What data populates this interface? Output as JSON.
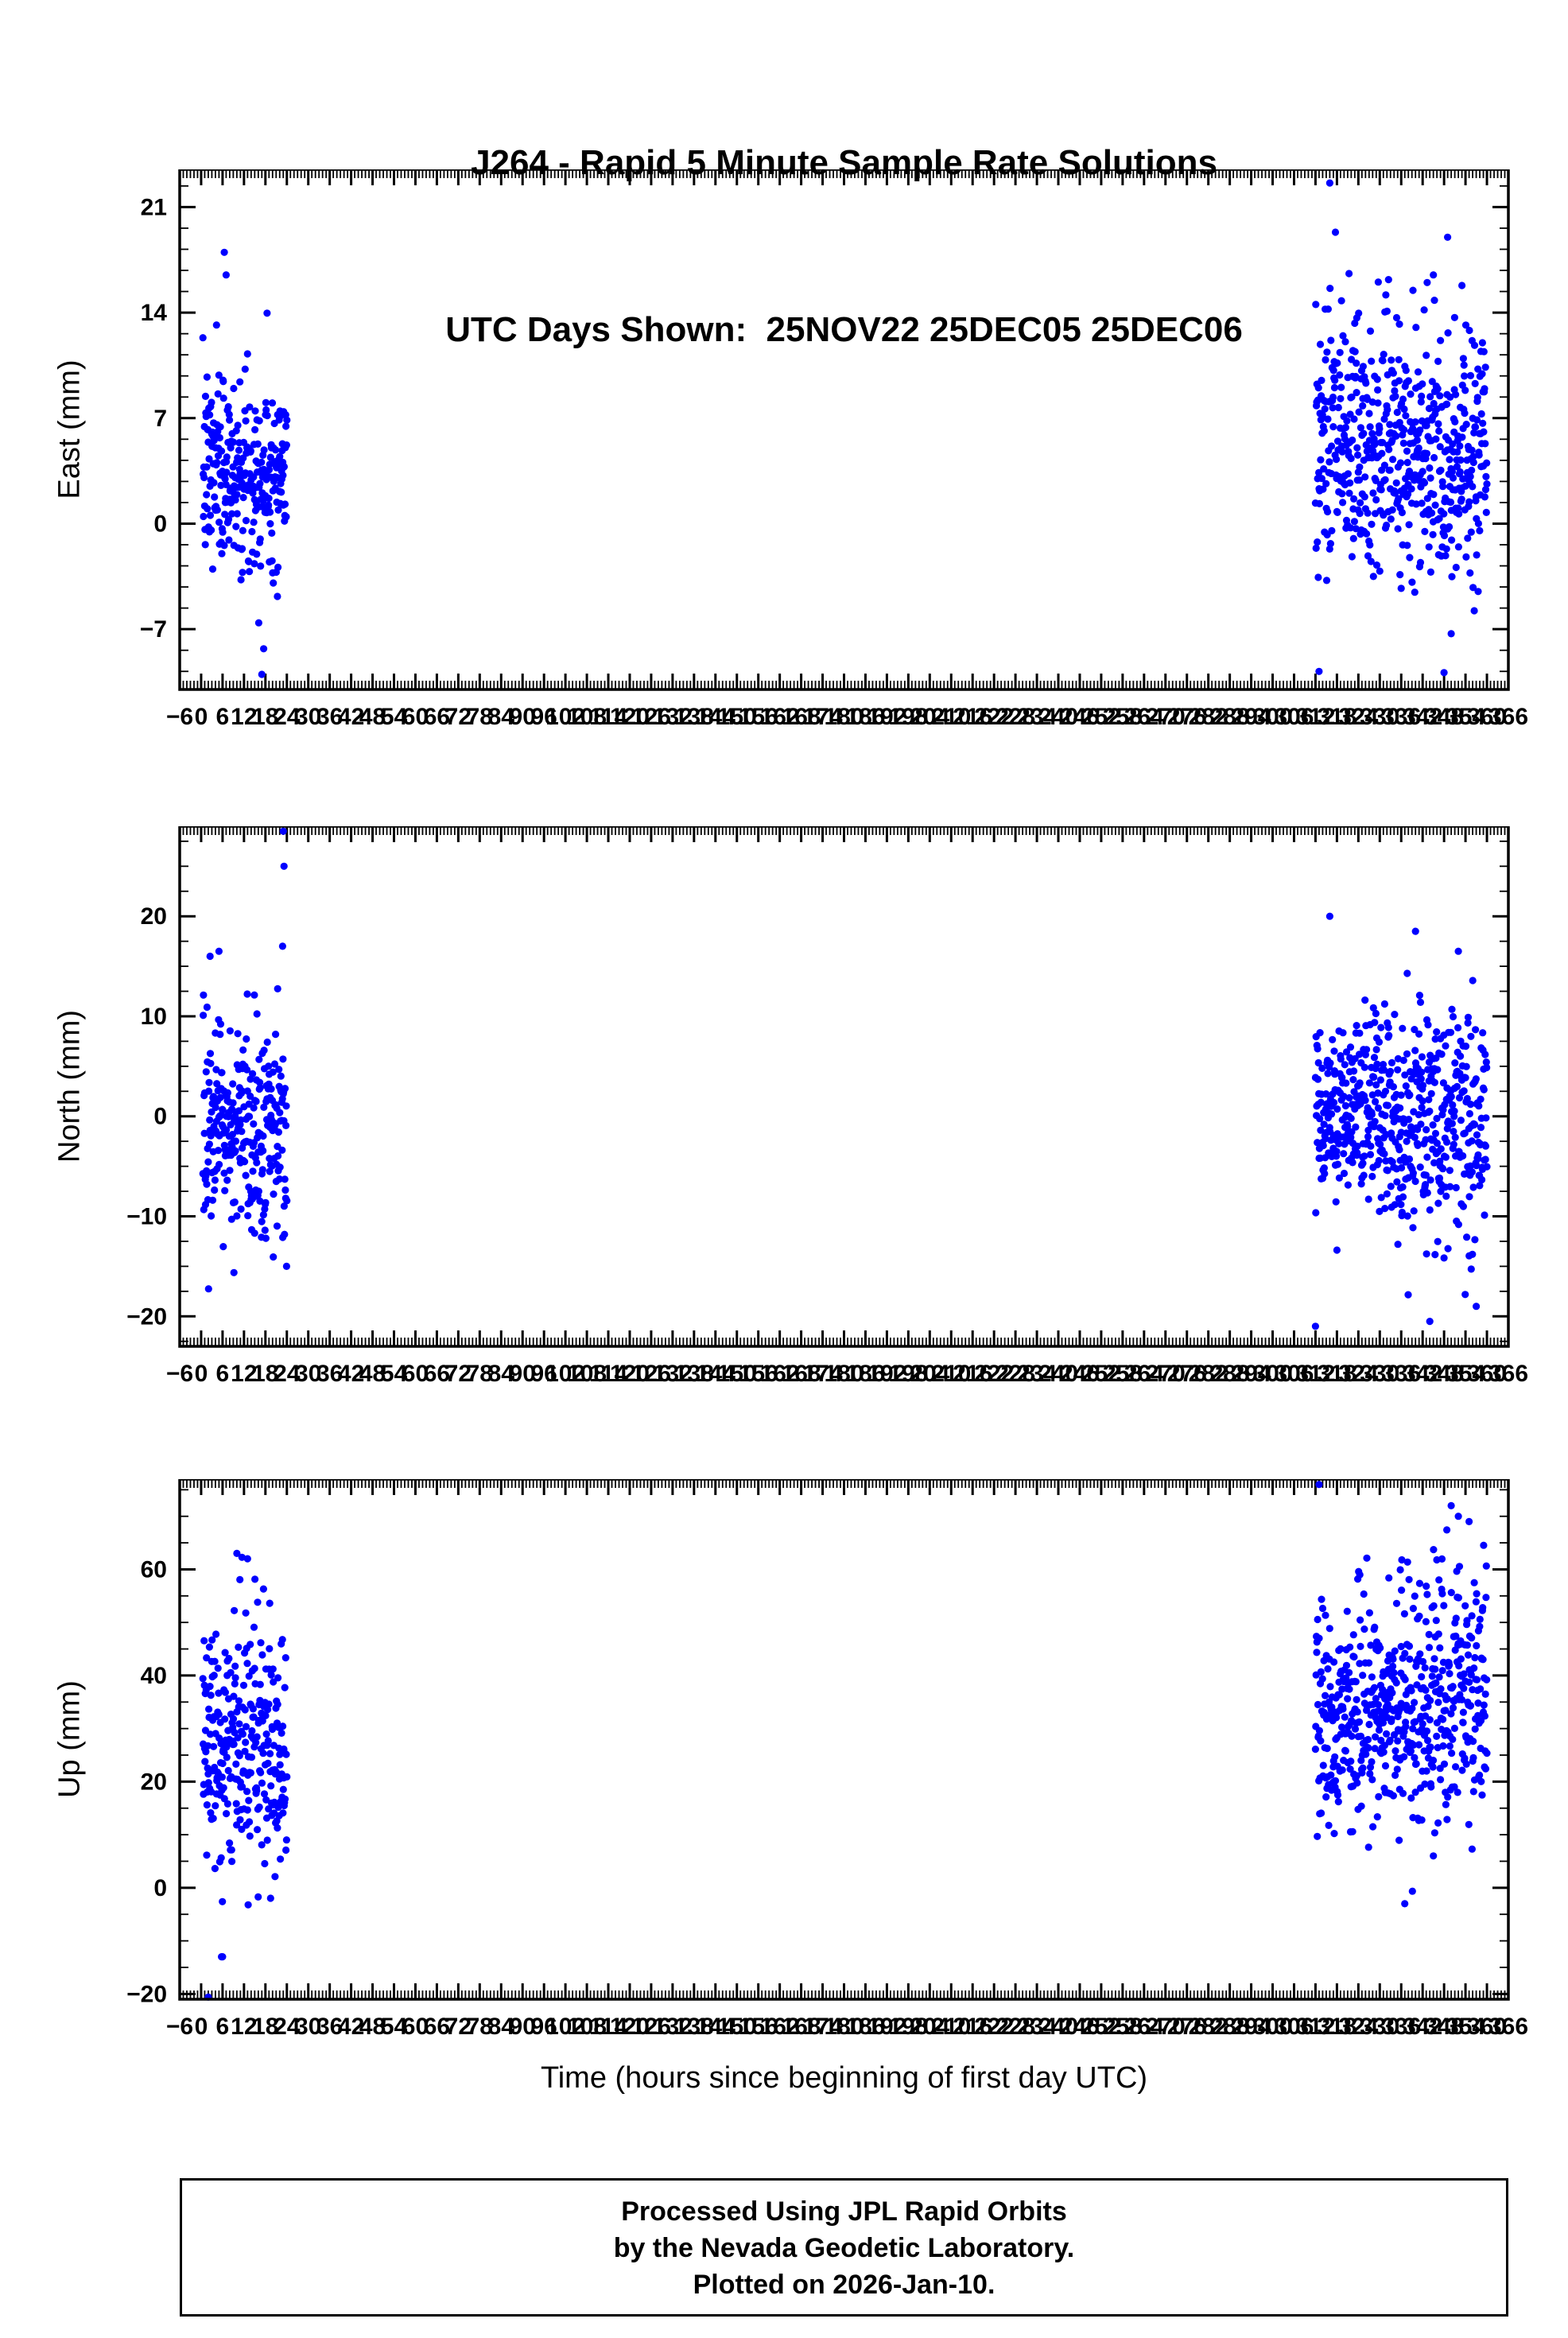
{
  "title": {
    "line1": "J264 - Rapid 5 Minute Sample Rate Solutions",
    "line2": "UTC Days Shown:  25NOV22 25DEC05 25DEC06"
  },
  "x": {
    "label": "Time (hours since beginning of first day UTC)",
    "lim": [
      -6,
      366
    ],
    "tick_major": 6,
    "tick_minor": 1
  },
  "colors": {
    "marker": "#0000ff",
    "frame": "#000000"
  },
  "footer": {
    "line1": "Processed Using JPL Rapid Orbits",
    "line2": "by the Nevada Geodetic Laboratory.",
    "line3": "Plotted on 2026-Jan-10."
  },
  "chart_data": [
    {
      "type": "scatter",
      "ylabel": "East (mm)",
      "ylim": [
        -11,
        23.5
      ],
      "yticks": [
        -7,
        0,
        7,
        14,
        21
      ],
      "ytick_minor": 1.4,
      "seed": 7,
      "marker_radius": 4.6,
      "clusters": [
        {
          "t0": 0.5,
          "t1": 24,
          "n": 285,
          "mean": 3.5,
          "std": 3.2
        },
        {
          "t0": 312,
          "t1": 336,
          "n": 285,
          "mean": 5.5,
          "std": 4.3
        },
        {
          "t0": 336,
          "t1": 360,
          "n": 285,
          "mean": 4.5,
          "std": 4.0
        }
      ],
      "outliers": [
        [
          6.5,
          18
        ],
        [
          7,
          16.5
        ],
        [
          17,
          -10
        ],
        [
          17.5,
          -8.3
        ],
        [
          316,
          22.6
        ],
        [
          345,
          16.5
        ],
        [
          349,
          19
        ],
        [
          313,
          -9.8
        ],
        [
          350,
          -7.3
        ],
        [
          353,
          15.8
        ]
      ]
    },
    {
      "type": "scatter",
      "ylabel": "North (mm)",
      "ylim": [
        -23,
        29
      ],
      "yticks": [
        -20,
        -10,
        0,
        10,
        20
      ],
      "ytick_minor": 2.5,
      "seed": 13,
      "marker_radius": 4.6,
      "clusters": [
        {
          "t0": 0.5,
          "t1": 24,
          "n": 285,
          "mean": -2,
          "std": 5.5
        },
        {
          "t0": 312,
          "t1": 336,
          "n": 285,
          "mean": 0,
          "std": 5.0
        },
        {
          "t0": 336,
          "t1": 360,
          "n": 285,
          "mean": -1,
          "std": 5.5
        }
      ],
      "outliers": [
        [
          23,
          28.5
        ],
        [
          23.2,
          25
        ],
        [
          22.8,
          17
        ],
        [
          5,
          16.5
        ],
        [
          2.5,
          16
        ],
        [
          316,
          20
        ],
        [
          340,
          18.5
        ],
        [
          352,
          16.5
        ],
        [
          312,
          -21
        ],
        [
          344,
          -20.5
        ],
        [
          357,
          -19
        ]
      ]
    },
    {
      "type": "scatter",
      "ylabel": "Up (mm)",
      "ylim": [
        -21,
        77
      ],
      "yticks": [
        -20,
        0,
        20,
        40,
        60
      ],
      "ytick_minor": 5,
      "seed": 29,
      "marker_radius": 4.6,
      "clusters": [
        {
          "t0": 0.5,
          "t1": 24,
          "n": 285,
          "mean": 27,
          "std": 12
        },
        {
          "t0": 312,
          "t1": 336,
          "n": 285,
          "mean": 33,
          "std": 10
        },
        {
          "t0": 336,
          "t1": 360,
          "n": 285,
          "mean": 36,
          "std": 12
        }
      ],
      "outliers": [
        [
          2,
          -22
        ],
        [
          6,
          -13
        ],
        [
          10,
          63
        ],
        [
          13,
          62
        ],
        [
          313,
          76
        ],
        [
          350,
          72
        ],
        [
          352,
          70
        ],
        [
          355,
          69
        ],
        [
          337,
          -3
        ],
        [
          345,
          6
        ]
      ]
    }
  ]
}
